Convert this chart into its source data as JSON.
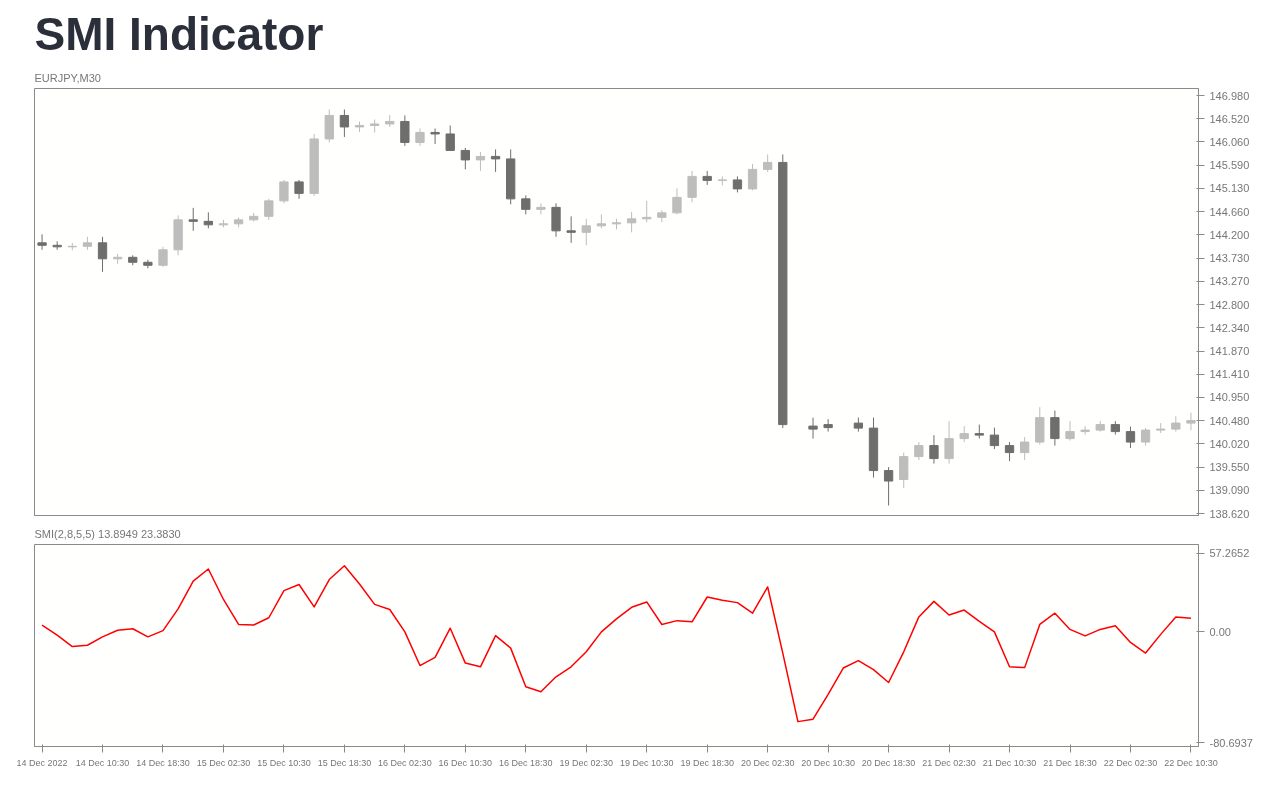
{
  "chart_data": [
    {
      "type": "candlestick",
      "title": "SMI Indicator",
      "subtitle": "EURJPY,M30",
      "categories": [
        null,
        null,
        null,
        null,
        null,
        null,
        null,
        null,
        null,
        null,
        null,
        null,
        null,
        null,
        null,
        null,
        null,
        null,
        null,
        null,
        null,
        null,
        null,
        null,
        null,
        null,
        null,
        null,
        null,
        null,
        null,
        null,
        null,
        null,
        null,
        null,
        null,
        null,
        null,
        null,
        null,
        null,
        null,
        null,
        null,
        null,
        null,
        null,
        null,
        null,
        null,
        null,
        null,
        null,
        null,
        null,
        null,
        null,
        null,
        null,
        null,
        null,
        null,
        null,
        null,
        null,
        null,
        null,
        null,
        null,
        null,
        null,
        null,
        null,
        null,
        null,
        null
      ],
      "ohlc": [
        [
          144.04,
          144.21,
          143.9,
          143.99
        ],
        [
          143.99,
          144.07,
          143.9,
          143.96
        ],
        [
          143.96,
          144.04,
          143.89,
          143.97
        ],
        [
          143.97,
          144.16,
          143.9,
          144.04
        ],
        [
          144.04,
          144.16,
          143.46,
          143.72
        ],
        [
          143.72,
          143.82,
          143.62,
          143.75
        ],
        [
          143.75,
          143.79,
          143.59,
          143.65
        ],
        [
          143.65,
          143.7,
          143.53,
          143.59
        ],
        [
          143.59,
          143.96,
          143.56,
          143.9
        ],
        [
          143.9,
          144.59,
          143.79,
          144.5
        ],
        [
          144.5,
          144.74,
          144.28,
          144.47
        ],
        [
          144.47,
          144.65,
          144.33,
          144.4
        ],
        [
          144.4,
          144.5,
          144.35,
          144.42
        ],
        [
          144.42,
          144.55,
          144.35,
          144.5
        ],
        [
          144.5,
          144.64,
          144.47,
          144.57
        ],
        [
          144.57,
          144.92,
          144.5,
          144.88
        ],
        [
          144.88,
          145.3,
          144.83,
          145.26
        ],
        [
          145.26,
          145.3,
          144.92,
          145.03
        ],
        [
          145.03,
          146.22,
          144.98,
          146.12
        ],
        [
          146.12,
          146.71,
          146.05,
          146.59
        ],
        [
          146.59,
          146.71,
          146.16,
          146.36
        ],
        [
          146.36,
          146.47,
          146.26,
          146.39
        ],
        [
          146.39,
          146.51,
          146.25,
          146.42
        ],
        [
          146.42,
          146.6,
          146.36,
          146.47
        ],
        [
          146.47,
          146.59,
          145.98,
          146.05
        ],
        [
          146.05,
          146.33,
          145.98,
          146.25
        ],
        [
          146.25,
          146.33,
          146.02,
          146.22
        ],
        [
          146.22,
          146.39,
          145.88,
          145.89
        ],
        [
          145.89,
          145.94,
          145.51,
          145.7
        ],
        [
          145.7,
          145.86,
          145.48,
          145.77
        ],
        [
          145.77,
          145.91,
          145.46,
          145.72
        ],
        [
          145.72,
          145.91,
          144.81,
          144.92
        ],
        [
          144.92,
          144.99,
          144.61,
          144.71
        ],
        [
          144.71,
          144.83,
          144.61,
          144.75
        ],
        [
          144.75,
          144.83,
          144.16,
          144.28
        ],
        [
          144.28,
          144.57,
          144.04,
          144.25
        ],
        [
          144.25,
          144.52,
          143.99,
          144.38
        ],
        [
          144.38,
          144.61,
          144.33,
          144.42
        ],
        [
          144.42,
          144.52,
          144.31,
          144.44
        ],
        [
          144.44,
          144.66,
          144.25,
          144.52
        ],
        [
          144.52,
          144.88,
          144.45,
          144.55
        ],
        [
          144.55,
          144.69,
          144.45,
          144.64
        ],
        [
          144.64,
          145.13,
          144.61,
          144.95
        ],
        [
          144.95,
          145.48,
          144.85,
          145.37
        ],
        [
          145.37,
          145.48,
          145.2,
          145.29
        ],
        [
          145.29,
          145.37,
          145.19,
          145.3
        ],
        [
          145.3,
          145.37,
          145.05,
          145.12
        ],
        [
          145.12,
          145.62,
          145.09,
          145.51
        ],
        [
          145.51,
          145.81,
          145.46,
          145.65
        ],
        [
          145.65,
          145.81,
          140.33,
          140.4
        ],
        null,
        [
          140.37,
          140.54,
          140.12,
          140.31
        ],
        [
          140.4,
          140.51,
          140.26,
          140.34
        ],
        null,
        [
          140.43,
          140.54,
          140.26,
          140.33
        ],
        [
          140.33,
          140.54,
          139.34,
          139.48
        ],
        [
          139.48,
          139.55,
          138.78,
          139.27
        ],
        [
          139.3,
          139.84,
          139.13,
          139.76
        ],
        [
          139.76,
          140.05,
          139.69,
          139.98
        ],
        [
          139.98,
          140.19,
          139.62,
          139.72
        ],
        [
          139.72,
          140.47,
          139.62,
          140.12
        ],
        [
          140.12,
          140.37,
          140.05,
          140.22
        ],
        [
          140.22,
          140.4,
          140.12,
          140.19
        ],
        [
          140.19,
          140.34,
          139.91,
          139.98
        ],
        [
          139.98,
          140.05,
          139.67,
          139.84
        ],
        [
          139.84,
          140.15,
          139.69,
          140.05
        ],
        [
          140.05,
          140.75,
          140.0,
          140.54
        ],
        [
          140.54,
          140.68,
          139.98,
          140.12
        ],
        [
          140.12,
          140.47,
          140.08,
          140.26
        ],
        [
          140.26,
          140.37,
          140.2,
          140.29
        ],
        [
          140.29,
          140.47,
          140.26,
          140.4
        ],
        [
          140.4,
          140.47,
          140.2,
          140.26
        ],
        [
          140.26,
          140.36,
          139.93,
          140.05
        ],
        [
          140.05,
          140.33,
          139.98,
          140.29
        ],
        [
          140.29,
          140.43,
          140.23,
          140.31
        ],
        [
          140.31,
          140.57,
          140.26,
          140.43
        ],
        [
          140.43,
          140.64,
          140.29,
          140.48
        ]
      ],
      "colors": [
        "#6e6e6e",
        "#6e6e6e",
        "#bdbdbd",
        "#bdbdbd",
        "#6e6e6e",
        "#bdbdbd",
        "#6e6e6e",
        "#6e6e6e",
        "#bdbdbd",
        "#bdbdbd",
        "#6e6e6e",
        "#6e6e6e",
        "#bdbdbd",
        "#bdbdbd",
        "#bdbdbd",
        "#bdbdbd",
        "#bdbdbd",
        "#6e6e6e",
        "#bdbdbd",
        "#bdbdbd",
        "#6e6e6e",
        "#bdbdbd",
        "#bdbdbd",
        "#bdbdbd",
        "#6e6e6e",
        "#bdbdbd",
        "#6e6e6e",
        "#6e6e6e",
        "#6e6e6e",
        "#bdbdbd",
        "#6e6e6e",
        "#6e6e6e",
        "#6e6e6e",
        "#bdbdbd",
        "#6e6e6e",
        "#6e6e6e",
        "#bdbdbd",
        "#bdbdbd",
        "#bdbdbd",
        "#bdbdbd",
        "#bdbdbd",
        "#bdbdbd",
        "#bdbdbd",
        "#bdbdbd",
        "#6e6e6e",
        "#bdbdbd",
        "#6e6e6e",
        "#bdbdbd",
        "#bdbdbd",
        "#6e6e6e",
        null,
        "#6e6e6e",
        "#6e6e6e",
        null,
        "#6e6e6e",
        "#6e6e6e",
        "#6e6e6e",
        "#bdbdbd",
        "#bdbdbd",
        "#6e6e6e",
        "#bdbdbd",
        "#bdbdbd",
        "#6e6e6e",
        "#6e6e6e",
        "#6e6e6e",
        "#bdbdbd",
        "#bdbdbd",
        "#6e6e6e",
        "#bdbdbd",
        "#bdbdbd",
        "#bdbdbd",
        "#6e6e6e",
        "#6e6e6e",
        "#bdbdbd",
        "#bdbdbd",
        "#bdbdbd",
        "#bdbdbd"
      ],
      "ylim": [
        138.58,
        147.13
      ],
      "yticks": [
        {
          "value": 146.98,
          "label": "146.980"
        },
        {
          "value": 146.52,
          "label": "146.520"
        },
        {
          "value": 146.06,
          "label": "146.060"
        },
        {
          "value": 145.59,
          "label": "145.590"
        },
        {
          "value": 145.13,
          "label": "145.130"
        },
        {
          "value": 144.66,
          "label": "144.660"
        },
        {
          "value": 144.2,
          "label": "144.200"
        },
        {
          "value": 143.73,
          "label": "143.730"
        },
        {
          "value": 143.27,
          "label": "143.270"
        },
        {
          "value": 142.8,
          "label": "142.800"
        },
        {
          "value": 142.34,
          "label": "142.340"
        },
        {
          "value": 141.87,
          "label": "141.870"
        },
        {
          "value": 141.41,
          "label": "141.410"
        },
        {
          "value": 140.95,
          "label": "140.950"
        },
        {
          "value": 140.48,
          "label": "140.480"
        },
        {
          "value": 140.02,
          "label": "140.020"
        },
        {
          "value": 139.55,
          "label": "139.550"
        },
        {
          "value": 139.09,
          "label": "139.090"
        },
        {
          "value": 138.62,
          "label": "138.620"
        }
      ],
      "tick_labels": "y"
    },
    {
      "type": "line",
      "title": "SMI(2,8,5,5) 13.8949 23.3830",
      "categories": [
        "14 Dec 2022",
        null,
        null,
        null,
        "14 Dec 10:30",
        null,
        null,
        null,
        "14 Dec 18:30",
        null,
        null,
        null,
        "15 Dec 02:30",
        null,
        null,
        null,
        "15 Dec 10:30",
        null,
        null,
        null,
        "15 Dec 18:30",
        null,
        null,
        null,
        "16 Dec 02:30",
        null,
        null,
        null,
        "16 Dec 10:30",
        null,
        null,
        null,
        "16 Dec 18:30",
        null,
        null,
        null,
        "19 Dec 02:30",
        null,
        null,
        null,
        "19 Dec 10:30",
        null,
        null,
        null,
        "19 Dec 18:30",
        null,
        null,
        null,
        "20 Dec 02:30",
        null,
        null,
        null,
        "20 Dec 10:30",
        null,
        null,
        null,
        "20 Dec 18:30",
        null,
        null,
        null,
        "21 Dec 02:30",
        null,
        null,
        null,
        "21 Dec 10:30",
        null,
        null,
        null,
        "21 Dec 18:30",
        null,
        null,
        null,
        "22 Dec 02:30",
        null,
        null,
        null,
        "22 Dec 10:30"
      ],
      "series": [
        {
          "color": "#ff0000",
          "values": [
            5.0,
            -2.3,
            -10.7,
            -9.7,
            -3.6,
            1.2,
            2.3,
            -3.6,
            0.9,
            16.8,
            36.9,
            45.8,
            23.6,
            5.4,
            5.0,
            10.3,
            30.0,
            34.5,
            18.2,
            38.1,
            48.1,
            34.9,
            20.0,
            16.3,
            0.0,
            -24.5,
            -18.6,
            2.7,
            -22.7,
            -25.4,
            -2.7,
            -11.8,
            -39.9,
            -43.6,
            -32.7,
            -25.4,
            -14.5,
            0.0,
            9.5,
            17.9,
            21.8,
            5.4,
            8.2,
            7.3,
            25.4,
            23.1,
            21.3,
            13.6,
            32.7,
            -15.4,
            -65.3,
            -63.5,
            -45.4,
            -26.3,
            -20.9,
            -27.5,
            -36.8,
            -14.5,
            10.9,
            22.2,
            12.3,
            15.9,
            7.7,
            0.0,
            -25.4,
            -26.0,
            5.4,
            13.6,
            1.8,
            -2.9,
            1.8,
            4.5,
            -7.7,
            -15.4,
            -1.8,
            10.9,
            10.0
          ]
        }
      ],
      "ylim": [
        -83.4,
        63.6
      ],
      "yticks": [
        {
          "value": 57.2652,
          "label": "57.2652"
        },
        {
          "value": 0,
          "label": "0.00"
        },
        {
          "value": -80.6937,
          "label": "-80.6937"
        }
      ]
    }
  ]
}
